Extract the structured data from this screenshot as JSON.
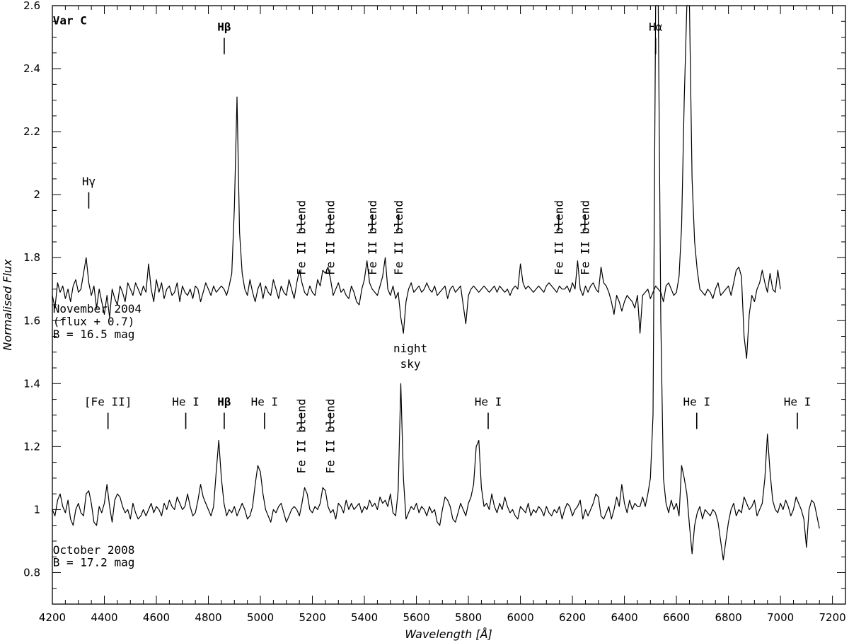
{
  "chart_data": {
    "type": "line",
    "xlabel": "Wavelength [Å]",
    "ylabel": "Normalised Flux",
    "xlim": [
      4200,
      7250
    ],
    "ylim": [
      0.7,
      2.6
    ],
    "grid": false,
    "x_ticks": [
      "4200",
      "4400",
      "4600",
      "4800",
      "5000",
      "5200",
      "5400",
      "5600",
      "5800",
      "6000",
      "6200",
      "6400",
      "6600",
      "6800",
      "7000",
      "7200"
    ],
    "y_ticks": [
      "0.8",
      "1",
      "1.2",
      "1.4",
      "1.6",
      "1.8",
      "2",
      "2.2",
      "2.4",
      "2.6"
    ],
    "panel_text": [
      {
        "text": "Var C",
        "wl": 4300,
        "flux": 2.54
      },
      {
        "text": "November 2004",
        "wl": 4300,
        "flux": 1.625
      },
      {
        "text": "(flux + 0.7)",
        "wl": 4300,
        "flux": 1.585
      },
      {
        "text": "B = 16.5 mag",
        "wl": 4300,
        "flux": 1.545
      },
      {
        "text": "October 2008",
        "wl": 4300,
        "flux": 0.86
      },
      {
        "text": "B = 17.2 mag",
        "wl": 4300,
        "flux": 0.82
      }
    ],
    "line_ids_top": [
      {
        "label": "Hγ",
        "wl": 4340,
        "flux": 2.03,
        "rotated": false
      },
      {
        "label": "Hβ",
        "wl": 4861,
        "flux": 2.52,
        "rotated": false
      },
      {
        "label": "Fe II blend",
        "wl": 5157,
        "flux": 1.96,
        "rotated": true
      },
      {
        "label": "Fe II blend",
        "wl": 5268,
        "flux": 1.96,
        "rotated": true
      },
      {
        "label": "Fe II blend",
        "wl": 5430,
        "flux": 1.96,
        "rotated": true
      },
      {
        "label": "Fe II blend",
        "wl": 5530,
        "flux": 1.96,
        "rotated": true
      },
      {
        "label": "Fe II blend",
        "wl": 6147,
        "flux": 1.96,
        "rotated": true
      },
      {
        "label": "Fe II blend",
        "wl": 6248,
        "flux": 1.96,
        "rotated": true
      },
      {
        "label": "Hα",
        "wl": 6520,
        "flux": 2.52,
        "rotated": false
      }
    ],
    "line_ids_bottom": [
      {
        "label": "[Fe II]",
        "wl": 4414,
        "flux": 1.33,
        "rotated": false
      },
      {
        "label": "He I",
        "wl": 4713,
        "flux": 1.33,
        "rotated": false
      },
      {
        "label": "Hβ",
        "wl": 4861,
        "flux": 1.33,
        "rotated": false
      },
      {
        "label": "He I",
        "wl": 5016,
        "flux": 1.33,
        "rotated": false
      },
      {
        "label": "Fe II blend",
        "wl": 5157,
        "flux": 1.33,
        "rotated": true
      },
      {
        "label": "Fe II blend",
        "wl": 5268,
        "flux": 1.33,
        "rotated": true
      },
      {
        "label": "night",
        "wl": 5577,
        "flux": 1.5,
        "rotated": false
      },
      {
        "label": "sky",
        "wl": 5577,
        "flux": 1.45,
        "rotated": false
      },
      {
        "label": "He I",
        "wl": 5876,
        "flux": 1.33,
        "rotated": false
      },
      {
        "label": "He I",
        "wl": 6678,
        "flux": 1.33,
        "rotated": false
      },
      {
        "label": "He I",
        "wl": 7065,
        "flux": 1.33,
        "rotated": false
      }
    ],
    "series": [
      {
        "x_start": 4200,
        "x_end": 6960,
        "step": 10,
        "y": [
          1.68,
          1.64,
          1.72,
          1.69,
          1.71,
          1.67,
          1.7,
          1.66,
          1.71,
          1.73,
          1.69,
          1.7,
          1.75,
          1.8,
          1.72,
          1.68,
          1.71,
          1.64,
          1.7,
          1.66,
          1.62,
          1.68,
          1.61,
          1.7,
          1.67,
          1.65,
          1.71,
          1.69,
          1.66,
          1.72,
          1.7,
          1.68,
          1.72,
          1.7,
          1.68,
          1.71,
          1.69,
          1.78,
          1.7,
          1.66,
          1.73,
          1.69,
          1.72,
          1.67,
          1.7,
          1.71,
          1.68,
          1.69,
          1.72,
          1.66,
          1.71,
          1.69,
          1.68,
          1.7,
          1.67,
          1.71,
          1.7,
          1.66,
          1.69,
          1.72,
          1.7,
          1.68,
          1.71,
          1.69,
          1.7,
          1.71,
          1.7,
          1.68,
          1.71,
          1.75,
          1.96,
          2.31,
          1.88,
          1.75,
          1.7,
          1.68,
          1.73,
          1.69,
          1.66,
          1.7,
          1.72,
          1.67,
          1.71,
          1.69,
          1.68,
          1.73,
          1.7,
          1.67,
          1.71,
          1.69,
          1.68,
          1.73,
          1.7,
          1.67,
          1.72,
          1.76,
          1.72,
          1.69,
          1.68,
          1.71,
          1.69,
          1.68,
          1.73,
          1.71,
          1.76,
          1.75,
          1.77,
          1.73,
          1.68,
          1.7,
          1.72,
          1.69,
          1.7,
          1.68,
          1.67,
          1.71,
          1.69,
          1.66,
          1.65,
          1.7,
          1.73,
          1.79,
          1.72,
          1.7,
          1.69,
          1.68,
          1.71,
          1.74,
          1.8,
          1.7,
          1.68,
          1.71,
          1.67,
          1.69,
          1.61,
          1.56,
          1.66,
          1.7,
          1.72,
          1.69,
          1.7,
          1.71,
          1.69,
          1.7,
          1.72,
          1.7,
          1.69,
          1.71,
          1.68,
          1.69,
          1.7,
          1.71,
          1.67,
          1.7,
          1.71,
          1.69,
          1.7,
          1.71,
          1.65,
          1.59,
          1.68,
          1.7,
          1.71,
          1.7,
          1.69,
          1.7,
          1.71,
          1.7,
          1.69,
          1.7,
          1.71,
          1.69,
          1.71,
          1.7,
          1.69,
          1.7,
          1.68,
          1.7,
          1.71,
          1.7,
          1.78,
          1.72,
          1.7,
          1.71,
          1.7,
          1.69,
          1.7,
          1.71,
          1.7,
          1.69,
          1.71,
          1.72,
          1.71,
          1.7,
          1.69,
          1.71,
          1.7,
          1.7,
          1.71,
          1.69,
          1.72,
          1.7,
          1.79,
          1.7,
          1.68,
          1.71,
          1.69,
          1.71,
          1.72,
          1.7,
          1.69,
          1.77,
          1.72,
          1.71,
          1.69,
          1.66,
          1.62,
          1.68,
          1.66,
          1.63,
          1.66,
          1.68,
          1.67,
          1.66,
          1.64,
          1.68,
          1.56,
          1.68,
          1.69,
          1.7,
          1.67,
          1.69,
          1.71,
          1.7,
          1.69,
          1.66,
          1.71,
          1.72,
          1.7,
          1.68,
          1.69,
          1.74,
          1.9,
          2.3,
          2.6,
          2.6,
          2.05,
          1.85,
          1.76,
          1.7,
          1.69,
          1.68,
          1.7,
          1.69,
          1.67,
          1.7,
          1.72,
          1.68,
          1.69,
          1.7,
          1.71,
          1.68,
          1.72,
          1.76,
          1.77,
          1.74,
          1.55,
          1.48,
          1.62,
          1.68,
          1.66,
          1.7,
          1.72,
          1.76,
          1.72,
          1.69,
          1.75,
          1.7,
          1.69,
          1.76,
          1.7
        ]
      },
      {
        "x_start": 4200,
        "x_end": 7250,
        "step": 10,
        "y": [
          1.0,
          0.98,
          1.03,
          1.05,
          1.01,
          0.99,
          1.03,
          0.97,
          0.95,
          1.0,
          1.02,
          0.99,
          0.98,
          1.05,
          1.06,
          1.02,
          0.96,
          0.95,
          1.01,
          0.99,
          1.02,
          1.08,
          1.01,
          0.96,
          1.03,
          1.05,
          1.04,
          1.01,
          0.99,
          1.0,
          0.97,
          1.02,
          0.99,
          0.97,
          0.98,
          1.0,
          0.98,
          1.0,
          1.02,
          0.99,
          1.01,
          1.0,
          0.98,
          1.02,
          1.0,
          1.03,
          1.01,
          1.0,
          1.04,
          1.02,
          1.0,
          1.01,
          1.05,
          1.01,
          0.98,
          0.99,
          1.03,
          1.08,
          1.04,
          1.02,
          1.0,
          0.98,
          1.01,
          1.12,
          1.22,
          1.1,
          1.02,
          0.98,
          1.0,
          0.99,
          1.01,
          0.98,
          1.0,
          1.02,
          1.0,
          0.97,
          0.98,
          1.01,
          1.08,
          1.14,
          1.12,
          1.05,
          1.0,
          0.98,
          0.96,
          1.0,
          0.99,
          1.01,
          1.02,
          0.99,
          0.96,
          0.98,
          1.0,
          1.01,
          1.0,
          0.98,
          1.02,
          1.07,
          1.05,
          1.0,
          0.99,
          1.01,
          1.0,
          1.02,
          1.07,
          1.06,
          1.01,
          0.99,
          1.0,
          0.97,
          1.02,
          1.01,
          0.99,
          1.03,
          1.0,
          1.02,
          1.0,
          1.01,
          1.02,
          0.99,
          1.01,
          1.0,
          1.03,
          1.01,
          1.02,
          1.0,
          1.04,
          1.02,
          1.03,
          1.01,
          1.05,
          0.99,
          0.98,
          1.06,
          1.4,
          1.1,
          0.97,
          0.99,
          1.01,
          1.0,
          1.02,
          0.99,
          1.01,
          1.0,
          0.98,
          1.01,
          0.99,
          1.0,
          0.96,
          0.95,
          1.0,
          1.04,
          1.03,
          1.01,
          0.97,
          0.96,
          0.99,
          1.02,
          1.0,
          0.98,
          1.02,
          1.04,
          1.08,
          1.2,
          1.22,
          1.07,
          1.01,
          1.02,
          1.0,
          1.05,
          1.01,
          0.99,
          1.02,
          1.0,
          1.04,
          1.01,
          0.99,
          1.0,
          0.98,
          0.97,
          1.01,
          1.0,
          0.99,
          1.02,
          0.98,
          1.0,
          0.99,
          1.01,
          1.0,
          0.98,
          1.01,
          0.99,
          0.98,
          1.0,
          0.99,
          1.01,
          0.97,
          1.0,
          1.02,
          1.01,
          0.98,
          1.0,
          1.01,
          1.03,
          0.97,
          1.0,
          0.98,
          1.0,
          1.02,
          1.05,
          1.04,
          0.98,
          0.97,
          0.99,
          1.01,
          0.97,
          1.0,
          1.04,
          1.01,
          1.08,
          1.02,
          0.99,
          1.03,
          1.0,
          1.02,
          1.01,
          1.01,
          1.04,
          1.01,
          1.05,
          1.1,
          1.3,
          2.6,
          2.6,
          1.6,
          1.1,
          1.02,
          0.99,
          1.03,
          1.0,
          1.02,
          0.98,
          1.14,
          1.1,
          1.05,
          0.95,
          0.86,
          0.95,
          0.99,
          1.01,
          0.97,
          1.0,
          0.99,
          0.98,
          1.0,
          0.99,
          0.96,
          0.9,
          0.84,
          0.9,
          0.96,
          1.0,
          1.02,
          0.98,
          1.0,
          0.99,
          1.04,
          1.02,
          1.0,
          1.01,
          1.03,
          0.98,
          1.0,
          1.02,
          1.1,
          1.24,
          1.12,
          1.03,
          1.0,
          0.99,
          1.02,
          1.0,
          1.03,
          1.01,
          0.98,
          1.0,
          1.04,
          1.02,
          1.0,
          0.97,
          0.88,
          1.0,
          1.03,
          1.02,
          0.98,
          0.94
        ]
      }
    ]
  }
}
